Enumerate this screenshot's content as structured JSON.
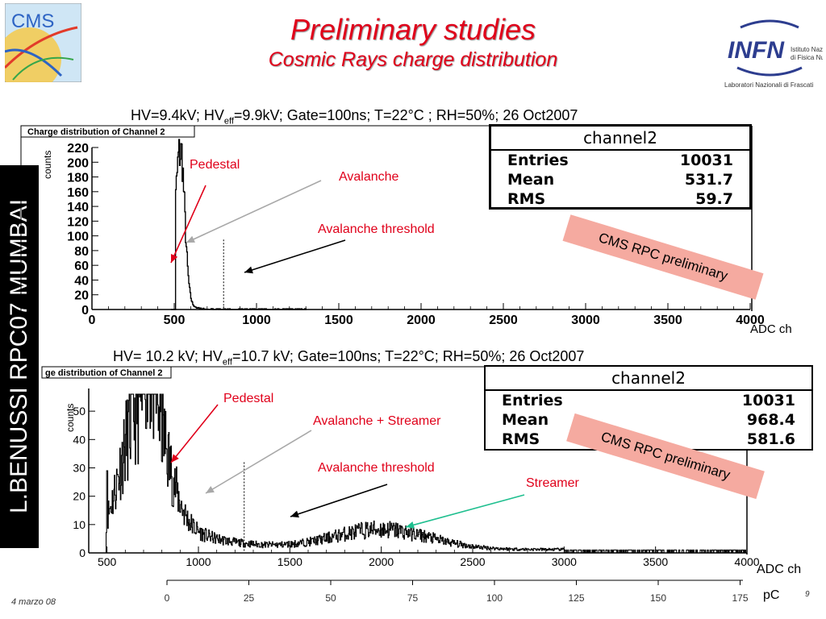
{
  "slide": {
    "title": "Preliminary studies",
    "subtitle": "Cosmic Rays charge distribution",
    "side_banner": "L.BENUSSI RPC07 MUMBAI",
    "footer_date": "4 marzo 08",
    "page_number": "9",
    "cms_logo_text": "CMS",
    "infn_logo_text": "INFN",
    "infn_line1": "Istituto Nazionale",
    "infn_line2": "di Fisica Nucleare",
    "infn_line3": "Laboratori Nazionali di Frascati",
    "colors": {
      "title": "#e0001a",
      "annotation_red": "#e0001a",
      "streamer_arrow": "#1fbf8f",
      "avalanche_arrow": "#a8a8a8"
    }
  },
  "chart_data": [
    {
      "type": "histogram",
      "title": "Charge distribution of Channel 2",
      "conditions": {
        "prefix": "HV=9.4kV; HV",
        "sub": "eff",
        "suffix": "=9.9kV; Gate=100ns; T=22°C ; RH=50%; 26 Oct2007"
      },
      "xlabel": "ADC ch",
      "ylabel": "counts",
      "xlim": [
        0,
        4000
      ],
      "ylim": [
        0,
        220
      ],
      "x_ticks": [
        "0",
        "500",
        "1000",
        "1500",
        "2000",
        "2500",
        "3000",
        "3500",
        "4000"
      ],
      "y_ticks": [
        "0",
        "20",
        "40",
        "60",
        "80",
        "100",
        "120",
        "140",
        "160",
        "180",
        "200",
        "220"
      ],
      "peak": {
        "x": 531,
        "y": 212,
        "width": 28
      },
      "threshold_x": 800,
      "stats": {
        "name": "channel2",
        "entries_label": "Entries",
        "entries": "10031",
        "mean_label": "Mean",
        "mean": "531.7",
        "rms_label": "RMS",
        "rms": "59.7"
      },
      "annotations": {
        "pedestal": "Pedestal",
        "avalanche": "Avalanche",
        "threshold": "Avalanche threshold"
      },
      "watermark": "CMS RPC preliminary"
    },
    {
      "type": "histogram",
      "title": "ge distribution of Channel 2",
      "conditions": {
        "prefix": "HV= 10.2 kV; HV",
        "sub": "eff",
        "suffix": "=10.7 kV; Gate=100ns; T=22°C; RH=50%; 26 Oct2007"
      },
      "xlabel": "ADC ch",
      "x2label": "pC",
      "ylabel": "counts",
      "xlim": [
        400,
        4000
      ],
      "ylim": [
        0,
        58
      ],
      "x_ticks": [
        "500",
        "1000",
        "1500",
        "2000",
        "2500",
        "3000",
        "3500",
        "4000"
      ],
      "y_ticks": [
        "0",
        "10",
        "20",
        "30",
        "40",
        "50"
      ],
      "x2_ticks": [
        "0",
        "25",
        "50",
        "75",
        "100",
        "125",
        "150",
        "175"
      ],
      "pedestal_spike": {
        "x": 500,
        "y": 29
      },
      "peak": {
        "x": 690,
        "y": 52,
        "width": 110
      },
      "streamer_bump": {
        "x": 2000,
        "y": 7
      },
      "threshold_x": 1250,
      "stats": {
        "name": "channel2",
        "entries_label": "Entries",
        "entries": "10031",
        "mean_label": "Mean",
        "mean": "968.4",
        "rms_label": "RMS",
        "rms": "581.6"
      },
      "annotations": {
        "pedestal": "Pedestal",
        "avalanche": "Avalanche + Streamer",
        "threshold": "Avalanche threshold",
        "streamer": "Streamer"
      },
      "watermark": "CMS RPC preliminary"
    }
  ]
}
